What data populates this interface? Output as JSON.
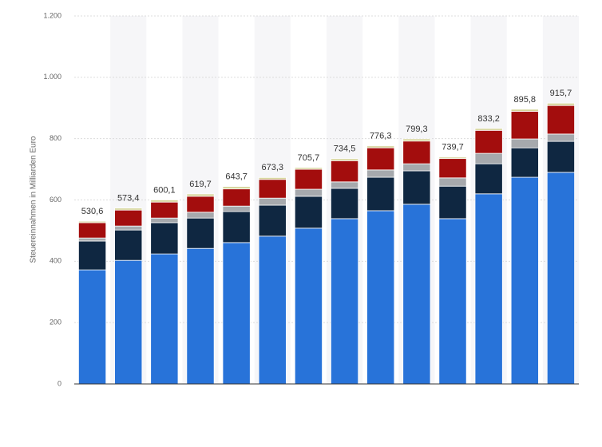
{
  "chart_data": {
    "type": "stacked_bar",
    "y_label": "Steuereinnahmen in Milliarden Euro",
    "categories": [
      null,
      null,
      null,
      null,
      null,
      null,
      null,
      null,
      null,
      null,
      null,
      null,
      null,
      null
    ],
    "series": [
      {
        "color": "#2873d9",
        "values": [
          372,
          403,
          424,
          442,
          461,
          482,
          508,
          539,
          565,
          586,
          539,
          620,
          674,
          690
        ]
      },
      {
        "color": "#0f2741",
        "values": [
          94,
          99,
          102,
          99,
          101,
          101,
          104,
          99,
          109,
          109,
          106,
          98,
          96,
          101
        ]
      },
      {
        "color": "#a6a9ad",
        "values": [
          10,
          13,
          15,
          19,
          18,
          23,
          23,
          21,
          24,
          23,
          27,
          34,
          29,
          24
        ]
      },
      {
        "color": "#a30d0d",
        "values": [
          50,
          52,
          52,
          52,
          56,
          61,
          65,
          69,
          72,
          74,
          63,
          75,
          90,
          93
        ]
      },
      {
        "color": "#d6d49a",
        "values": [
          4.6,
          6.4,
          7.1,
          7.7,
          7.7,
          6.3,
          5.7,
          6.5,
          6.3,
          7.3,
          4.7,
          6.2,
          6.8,
          7.7
        ]
      }
    ],
    "totals": [
      530.6,
      573.4,
      600.1,
      619.7,
      643.7,
      673.3,
      705.7,
      734.5,
      776.3,
      799.3,
      739.7,
      833.2,
      895.8,
      915.7
    ],
    "total_labels": [
      "530,6",
      "573,4",
      "600,1",
      "619,7",
      "643,7",
      "673,3",
      "705,7",
      "734,5",
      "776,3",
      "799,3",
      "739,7",
      "833,2",
      "895,8",
      "915,7"
    ],
    "ylim": [
      0,
      1200
    ],
    "yticks": [
      0,
      200,
      400,
      600,
      800,
      {
        "value": 1000,
        "label": "1.000"
      },
      {
        "value": 1200,
        "label": "1.200"
      }
    ],
    "grid": true
  }
}
